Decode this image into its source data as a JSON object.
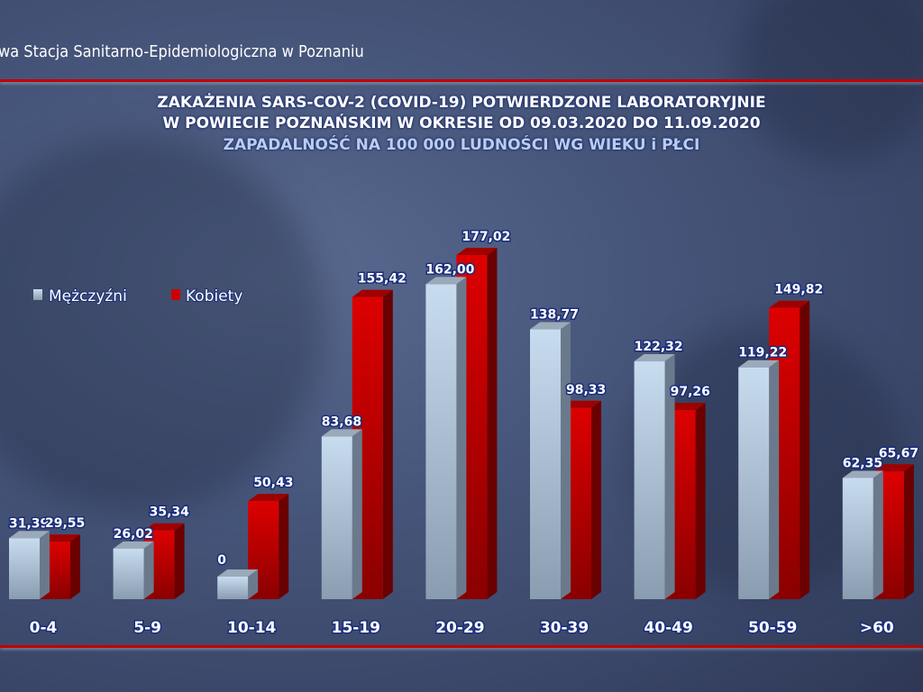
{
  "header": {
    "organization": "wa Stacja Sanitarno-Epidemiologiczna w Poznaniu"
  },
  "chart_data": {
    "type": "bar",
    "title": "ZAKAŻENIA SARS-COV-2 (COVID-19) POTWIERDZONE LABORATORYJNIE",
    "title_line2": "W POWIECIE POZNAŃSKIM W OKRESIE OD 09.03.2020 DO 11.09.2020",
    "subtitle": "ZAPADALNOŚĆ NA 100 000 LUDNOŚCI WG WIEKU i PŁCI",
    "categories": [
      "0-4",
      "5-9",
      "10-14",
      "15-19",
      "20-29",
      "30-39",
      "40-49",
      "50-59",
      ">60"
    ],
    "series": [
      {
        "name": "Mężczyźni",
        "color": "#b8d0e8",
        "values": [
          31.39,
          26.02,
          0,
          83.68,
          162.0,
          138.77,
          122.32,
          119.22,
          62.35
        ],
        "labels": [
          "31,39",
          "26,02",
          "0",
          "83,68",
          "162,00",
          "138,77",
          "122,32",
          "119,22",
          "62,35"
        ]
      },
      {
        "name": "Kobiety",
        "color": "#cc0000",
        "values": [
          29.55,
          35.34,
          50.43,
          155.42,
          177.02,
          98.33,
          97.26,
          149.82,
          65.67
        ],
        "labels": [
          "29,55",
          "35,34",
          "50,43",
          "155,42",
          "177,02",
          "98,33",
          "97,26",
          "149,82",
          "65,67"
        ]
      }
    ],
    "ylim": [
      0,
      180
    ],
    "legend": "left",
    "grid": false
  }
}
